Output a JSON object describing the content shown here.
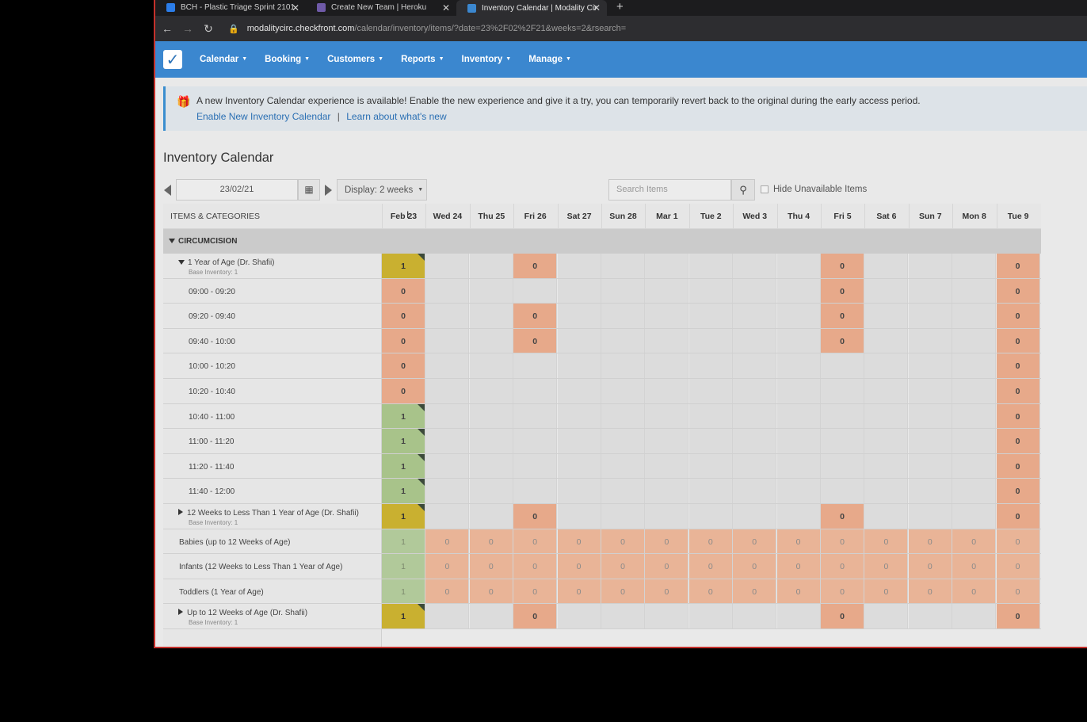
{
  "browser": {
    "tabs": [
      {
        "title": "BCH - Plastic Triage Sprint 2101",
        "icon_color": "#2b7de9",
        "active": false
      },
      {
        "title": "Create New Team | Heroku",
        "icon_color": "#6f5aa8",
        "active": false
      },
      {
        "title": "Inventory Calendar | Modality Cir",
        "icon_color": "#3b87cf",
        "active": true
      }
    ],
    "new_tab": "+",
    "url_host": "modalitycirc.checkfront.com",
    "url_path": "/calendar/inventory/items/?date=23%2F02%2F21&weeks=2&rsearch="
  },
  "nav": {
    "items": [
      "Calendar",
      "Booking",
      "Customers",
      "Reports",
      "Inventory",
      "Manage"
    ]
  },
  "banner": {
    "message": "A new Inventory Calendar experience is available! Enable the new experience and give it a try, you can temporarily revert back to the original during the early access period.",
    "enable_link": "Enable New Inventory Calendar",
    "separator": "|",
    "learn_link": "Learn about what's new"
  },
  "page_title": "Inventory Calendar",
  "controls": {
    "date": "23/02/21",
    "display": "Display: 2 weeks",
    "search_placeholder": "Search Items",
    "hide_unavailable": "Hide Unavailable Items"
  },
  "grid": {
    "header_label": "ITEMS & CATEGORIES",
    "days": [
      "Feb 23",
      "Wed 24",
      "Thu 25",
      "Fri 26",
      "Sat 27",
      "Sun 28",
      "Mar 1",
      "Tue 2",
      "Wed 3",
      "Thu 4",
      "Fri 5",
      "Sat 6",
      "Sun 7",
      "Mon 8",
      "Tue 9"
    ],
    "category": "CIRCUMCISION",
    "rows": [
      {
        "label": "1 Year of Age (Dr. Shafii)",
        "sub": "Base Inventory: 1",
        "type": "group-open",
        "cells": [
          "P1",
          "",
          "",
          "F0",
          "",
          "",
          "",
          "",
          "",
          "",
          "F0",
          "",
          "",
          "",
          "F0"
        ]
      },
      {
        "label": "09:00 - 09:20",
        "type": "slot",
        "cells": [
          "F0",
          "",
          "",
          "",
          "",
          "",
          "",
          "",
          "",
          "",
          "F0",
          "",
          "",
          "",
          "F0"
        ]
      },
      {
        "label": "09:20 - 09:40",
        "type": "slot",
        "cells": [
          "F0",
          "",
          "",
          "F0",
          "",
          "",
          "",
          "",
          "",
          "",
          "F0",
          "",
          "",
          "",
          "F0"
        ]
      },
      {
        "label": "09:40 - 10:00",
        "type": "slot",
        "cells": [
          "F0",
          "",
          "",
          "F0",
          "",
          "",
          "",
          "",
          "",
          "",
          "F0",
          "",
          "",
          "",
          "F0"
        ]
      },
      {
        "label": "10:00 - 10:20",
        "type": "slot",
        "cells": [
          "F0",
          "",
          "",
          "",
          "",
          "",
          "",
          "",
          "",
          "",
          "",
          "",
          "",
          "",
          "F0"
        ]
      },
      {
        "label": "10:20 - 10:40",
        "type": "slot",
        "cells": [
          "F0",
          "",
          "",
          "",
          "",
          "",
          "",
          "",
          "",
          "",
          "",
          "",
          "",
          "",
          "F0"
        ]
      },
      {
        "label": "10:40 - 11:00",
        "type": "slot",
        "cells": [
          "A1",
          "",
          "",
          "",
          "",
          "",
          "",
          "",
          "",
          "",
          "",
          "",
          "",
          "",
          "F0"
        ]
      },
      {
        "label": "11:00 - 11:20",
        "type": "slot",
        "cells": [
          "A1",
          "",
          "",
          "",
          "",
          "",
          "",
          "",
          "",
          "",
          "",
          "",
          "",
          "",
          "F0"
        ]
      },
      {
        "label": "11:20 - 11:40",
        "type": "slot",
        "cells": [
          "A1",
          "",
          "",
          "",
          "",
          "",
          "",
          "",
          "",
          "",
          "",
          "",
          "",
          "",
          "F0"
        ]
      },
      {
        "label": "11:40 - 12:00",
        "type": "slot",
        "cells": [
          "A1",
          "",
          "",
          "",
          "",
          "",
          "",
          "",
          "",
          "",
          "",
          "",
          "",
          "",
          "F0"
        ]
      },
      {
        "label": "12 Weeks to Less Than 1 Year of Age (Dr. Shafii)",
        "sub": "Base Inventory: 1",
        "type": "group-closed",
        "cells": [
          "P1",
          "",
          "",
          "F0",
          "",
          "",
          "",
          "",
          "",
          "",
          "F0",
          "",
          "",
          "",
          "F0"
        ]
      },
      {
        "label": "Babies (up to 12 Weeks of Age)",
        "type": "item",
        "cells": [
          "a1",
          "f0",
          "f0",
          "f0",
          "f0",
          "f0",
          "f0",
          "f0",
          "f0",
          "f0",
          "f0",
          "f0",
          "f0",
          "f0",
          "f0"
        ]
      },
      {
        "label": "Infants (12 Weeks to Less Than 1 Year of Age)",
        "type": "item",
        "cells": [
          "a1",
          "f0",
          "f0",
          "f0",
          "f0",
          "f0",
          "f0",
          "f0",
          "f0",
          "f0",
          "f0",
          "f0",
          "f0",
          "f0",
          "f0"
        ]
      },
      {
        "label": "Toddlers (1 Year of Age)",
        "type": "item",
        "cells": [
          "a1",
          "f0",
          "f0",
          "f0",
          "f0",
          "f0",
          "f0",
          "f0",
          "f0",
          "f0",
          "f0",
          "f0",
          "f0",
          "f0",
          "f0"
        ]
      },
      {
        "label": "Up to 12 Weeks of Age (Dr. Shafii)",
        "sub": "Base Inventory: 1",
        "type": "group-closed",
        "cells": [
          "P1",
          "",
          "",
          "F0",
          "",
          "",
          "",
          "",
          "",
          "",
          "F0",
          "",
          "",
          "",
          "F0"
        ]
      }
    ]
  },
  "colors": {
    "navbar": "#3b87cf",
    "full": "#e7a98a",
    "available": "#a8c38a",
    "partial": "#c9b030"
  }
}
